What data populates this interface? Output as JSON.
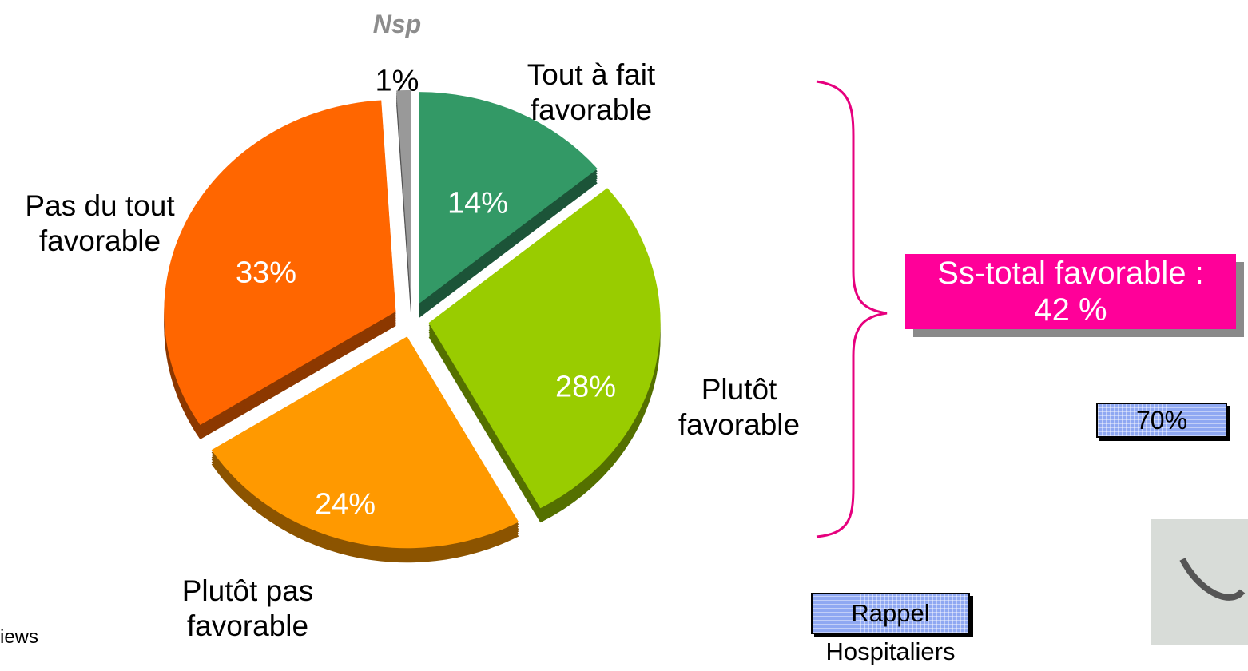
{
  "chart_data": {
    "type": "pie",
    "categories": [
      "Tout à fait favorable",
      "Plutôt favorable",
      "Plutôt pas favorable",
      "Pas du tout favorable",
      "Nsp"
    ],
    "values": [
      14,
      28,
      24,
      33,
      1
    ],
    "value_labels": [
      "14%",
      "28%",
      "24%",
      "33%",
      "1%"
    ],
    "colors": [
      "#339966",
      "#99cc00",
      "#ff9900",
      "#ff6600",
      "#999999"
    ]
  },
  "subtotal_box": "Ss-total favorable : 42 %",
  "badge": "70%",
  "button": "Rappel Hospitaliers",
  "footnote": "iews"
}
